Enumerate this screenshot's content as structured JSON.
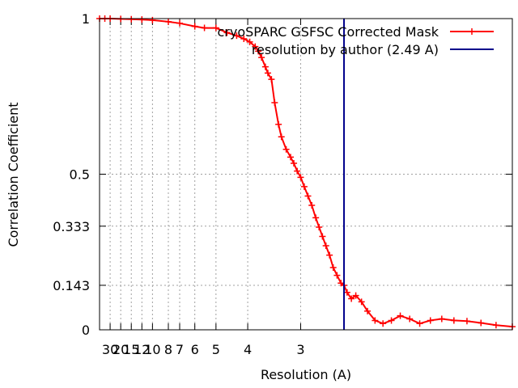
{
  "chart_data": {
    "type": "line",
    "ylabel": "Correlation Coefficient",
    "xlabel": "Resolution (A)",
    "x_scale": "reciprocal",
    "xlim_resolution": [
      60,
      1.5
    ],
    "ylim": [
      0,
      1
    ],
    "grid": true,
    "legend_position": "top-right",
    "y_ticks": [
      {
        "value": 0,
        "label": "0"
      },
      {
        "value": 0.143,
        "label": "0.143"
      },
      {
        "value": 0.333,
        "label": "0.333"
      },
      {
        "value": 0.5,
        "label": "0.5"
      },
      {
        "value": 1,
        "label": "1"
      }
    ],
    "x_ticks": [
      {
        "value": 30,
        "label": "30"
      },
      {
        "value": 20,
        "label": "20"
      },
      {
        "value": 15,
        "label": "15"
      },
      {
        "value": 12,
        "label": "12"
      },
      {
        "value": 10,
        "label": "10"
      },
      {
        "value": 8,
        "label": "8"
      },
      {
        "value": 7,
        "label": "7"
      },
      {
        "value": 6,
        "label": "6"
      },
      {
        "value": 5,
        "label": "5"
      },
      {
        "value": 4,
        "label": "4"
      },
      {
        "value": 3,
        "label": "3"
      }
    ],
    "series": [
      {
        "name": "cryoSPARC GSFSC Corrected Mask",
        "color": "#ff0000",
        "marker": "plus",
        "resolution": [
          60,
          40,
          30,
          20,
          15,
          12,
          10,
          8,
          7,
          6,
          5.5,
          5,
          4.6,
          4.3,
          4.1,
          3.95,
          3.82,
          3.75,
          3.68,
          3.6,
          3.55,
          3.48,
          3.42,
          3.35,
          3.3,
          3.22,
          3.15,
          3.1,
          3.05,
          3.0,
          2.95,
          2.9,
          2.85,
          2.8,
          2.76,
          2.72,
          2.68,
          2.64,
          2.6,
          2.56,
          2.52,
          2.49,
          2.46,
          2.42,
          2.38,
          2.33,
          2.28,
          2.22,
          2.16,
          2.1,
          2.04,
          1.98,
          1.92,
          1.86,
          1.8,
          1.74,
          1.68,
          1.62,
          1.56,
          1.5
        ],
        "fsc": [
          1.0,
          1.0,
          1.0,
          0.999,
          0.998,
          0.997,
          0.995,
          0.99,
          0.985,
          0.975,
          0.97,
          0.97,
          0.955,
          0.945,
          0.935,
          0.925,
          0.91,
          0.895,
          0.875,
          0.845,
          0.825,
          0.805,
          0.73,
          0.66,
          0.62,
          0.58,
          0.555,
          0.535,
          0.51,
          0.49,
          0.46,
          0.43,
          0.4,
          0.36,
          0.33,
          0.3,
          0.27,
          0.24,
          0.2,
          0.175,
          0.15,
          0.143,
          0.12,
          0.1,
          0.11,
          0.09,
          0.06,
          0.03,
          0.02,
          0.03,
          0.045,
          0.035,
          0.02,
          0.03,
          0.035,
          0.03,
          0.028,
          0.022,
          0.015,
          0.01
        ]
      },
      {
        "name": "resolution by author (2.49 A)",
        "color": "#00008b",
        "type": "vline",
        "resolution": 2.49
      }
    ]
  }
}
